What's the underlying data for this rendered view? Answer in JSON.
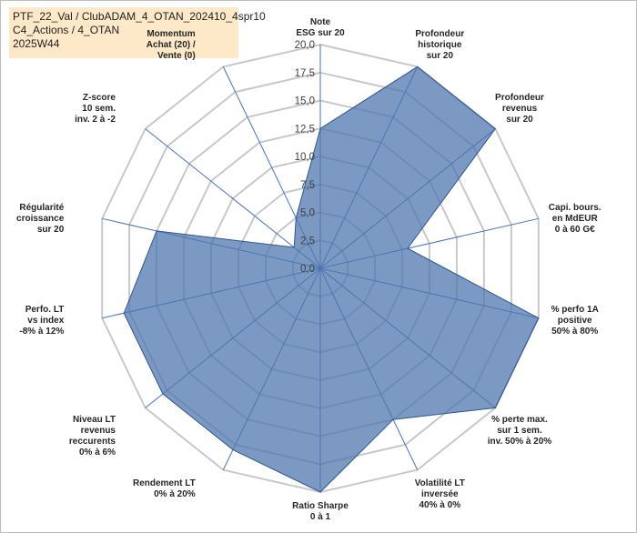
{
  "title_lines": [
    "PTF_22_Val / ClubADAM_4_OTAN_202410_4spr10",
    "C4_Actions / 4_OTAN",
    "2025W44"
  ],
  "colors": {
    "fill": "#4f77ad",
    "fill_opacity": 0.75,
    "stroke": "#2f5597",
    "axis_spoke": "#4472c4",
    "grid": "#c8c8c8",
    "title_bg": "#fde9c7"
  },
  "chart_data": {
    "type": "radar",
    "title": "PTF_22_Val / ClubADAM_4_OTAN_202410_4spr10 C4_Actions / 4_OTAN 2025W44",
    "rlim": [
      0,
      20
    ],
    "rticks": [
      "0,0",
      "2,5",
      "5,0",
      "7,5",
      "10,0",
      "12,5",
      "15,0",
      "17,5",
      "20,0"
    ],
    "grid": true,
    "axes": [
      {
        "label": [
          "Note",
          "ESG sur 20"
        ],
        "value": 12.5
      },
      {
        "label": [
          "Profondeur",
          "historique",
          "sur 20"
        ],
        "value": 20.0
      },
      {
        "label": [
          "Profondeur",
          "revenus",
          "sur 20"
        ],
        "value": 20.0
      },
      {
        "label": [
          "Capi. bours.",
          "en MdEUR",
          "0 à 60 G€"
        ],
        "value": 8.0
      },
      {
        "label": [
          "% perfo 1A",
          "positive",
          "50% à 80%"
        ],
        "value": 20.0
      },
      {
        "label": [
          "% perte max.",
          "sur 1 sem.",
          "inv. 50% à 20%"
        ],
        "value": 20.0
      },
      {
        "label": [
          "Volatilité LT",
          "inversée",
          "40% à 0%"
        ],
        "value": 15.0
      },
      {
        "label": [
          "Ratio Sharpe",
          "0 à 1"
        ],
        "value": 20.0
      },
      {
        "label": [
          "Rendement LT",
          "0% à 20%"
        ],
        "value": 18.0
      },
      {
        "label": [
          "Niveau LT",
          "revenus",
          "reccurents",
          "0% à 6%"
        ],
        "value": 18.0
      },
      {
        "label": [
          "Perfo. LT",
          "vs index",
          "-8% à 12%"
        ],
        "value": 18.0
      },
      {
        "label": [
          "Régularité",
          "croissance",
          "sur 20"
        ],
        "value": 15.0
      },
      {
        "label": [
          "Z-score",
          "10 sem.",
          "inv. 2 à -2"
        ],
        "value": 3.0
      },
      {
        "label": [
          "Momentum",
          "Achat (20) /",
          "Vente (0)"
        ],
        "value": 5.0
      }
    ]
  }
}
